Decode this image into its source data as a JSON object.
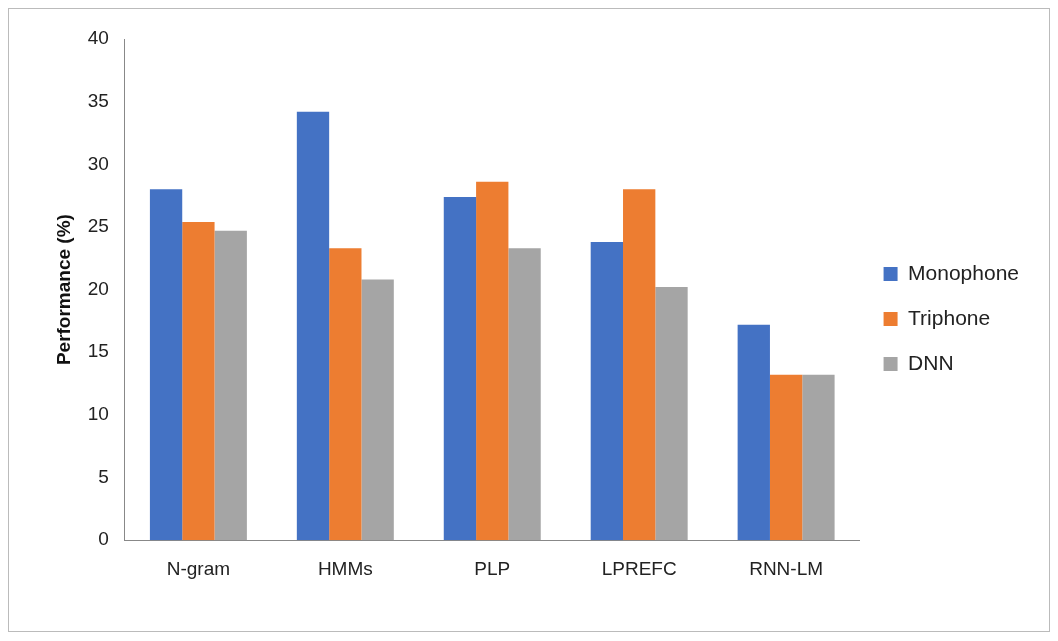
{
  "chart_data": {
    "type": "bar",
    "ylabel": "Performance (%)",
    "categories": [
      "N-gram",
      "HMMs",
      "PLP",
      "LPREFC",
      "RNN-LM"
    ],
    "series": [
      {
        "name": "Monophone",
        "color": "#4472c4",
        "values": [
          28.0,
          34.2,
          27.4,
          23.8,
          17.2
        ]
      },
      {
        "name": "Triphone",
        "color": "#ed7d31",
        "values": [
          25.4,
          23.3,
          28.6,
          28.0,
          13.2
        ]
      },
      {
        "name": "DNN",
        "color": "#a5a5a5",
        "values": [
          24.7,
          20.8,
          23.3,
          20.2,
          13.2
        ]
      }
    ],
    "ylim": [
      0,
      40
    ],
    "yticks": [
      0,
      5,
      10,
      15,
      20,
      25,
      30,
      35,
      40
    ],
    "grid": false,
    "legend": "right"
  }
}
